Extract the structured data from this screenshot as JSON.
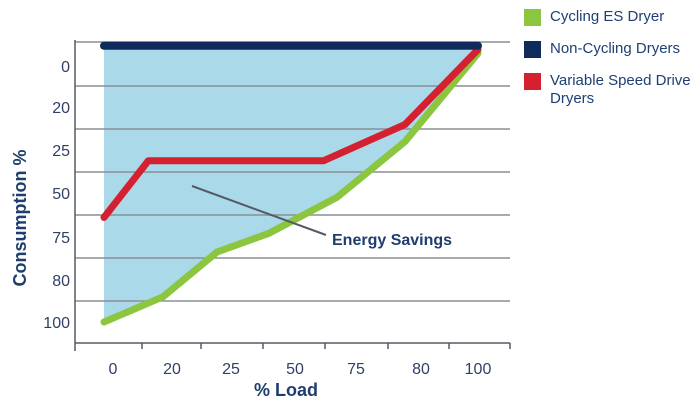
{
  "chart_data": {
    "type": "line",
    "xlabel": "% Load",
    "ylabel": "Consumption %",
    "x_tick_labels": [
      "0",
      "20",
      "25",
      "50",
      "75",
      "80",
      "100"
    ],
    "y_tick_labels": [
      "0",
      "20",
      "25",
      "50",
      "75",
      "80",
      "100"
    ],
    "grid": true,
    "legend_position": "right",
    "annotation": "Energy Savings",
    "series": [
      {
        "name": "Cycling ES Dryer",
        "color": "#8cc63f",
        "points": [
          [
            0,
            0
          ],
          [
            20,
            14
          ],
          [
            25,
            25
          ],
          [
            50,
            38
          ],
          [
            75,
            63
          ],
          [
            80,
            79
          ],
          [
            100,
            101
          ]
        ]
      },
      {
        "name": "Non-Cycling Dryers",
        "color": "#0f2a5c",
        "points": [
          [
            0,
            103
          ],
          [
            100,
            103
          ]
        ]
      },
      {
        "name": "Variable Speed Drive Dryers",
        "color": "#d42030",
        "points": [
          [
            0,
            49
          ],
          [
            15,
            77
          ],
          [
            70,
            77
          ],
          [
            80,
            82
          ],
          [
            90,
            92
          ],
          [
            100,
            102
          ]
        ]
      }
    ]
  }
}
